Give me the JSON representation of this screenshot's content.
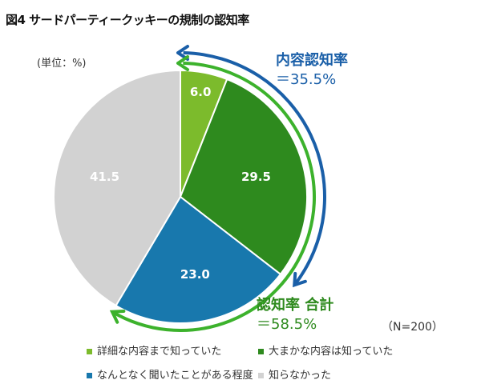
{
  "title": "図4 サードパーティークッキーの規制の認知率",
  "unit": "(単位：%)",
  "sample": "（N=200）",
  "annotations": {
    "content_label": "内容認知率",
    "content_value": "＝35.5%",
    "total_label": "認知率 合計",
    "total_value": "＝58.5%"
  },
  "colors": {
    "arrow_blue": "#1a5fa8",
    "arrow_green": "#3cb22c"
  },
  "chart_data": {
    "type": "pie",
    "start": "top",
    "direction": "clockwise",
    "categories": [
      "詳細な内容まで知っていた",
      "大まかな内容は知っていた",
      "なんとなく聞いたことがある程度",
      "知らなかった"
    ],
    "values": [
      6.0,
      29.5,
      23.0,
      41.5
    ],
    "labels": [
      "6.0",
      "29.5",
      "23.0",
      "41.5"
    ],
    "colors": [
      "#7cbb2c",
      "#2e8a1e",
      "#1878ad",
      "#d2d2d2"
    ],
    "legend": "bottom"
  }
}
